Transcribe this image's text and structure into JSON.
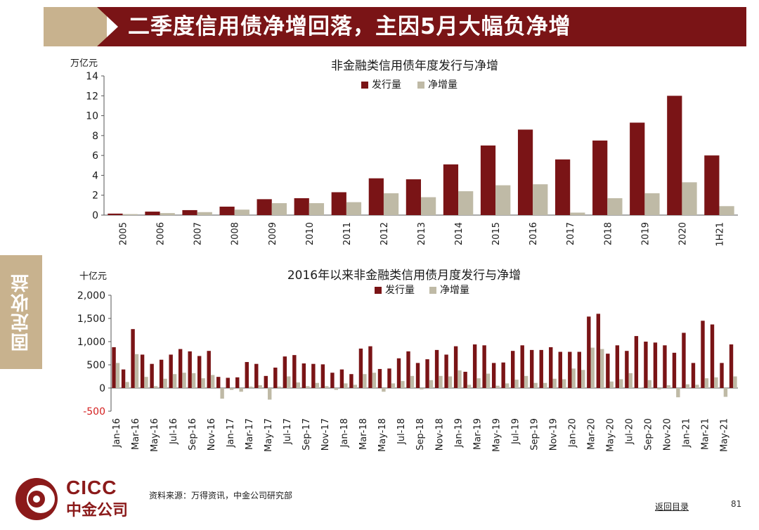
{
  "header": {
    "title": "二季度信用债净增回落，主因5月大幅负净增"
  },
  "side_tab": {
    "label": "固定收益"
  },
  "footer": {
    "source": "资料来源：万得资讯，中金公司研究部",
    "back_link": "返回目录",
    "page_number": "81"
  },
  "logo": {
    "en": "CICC",
    "cn": "中金公司"
  },
  "colors": {
    "issuance": "#7a1416",
    "net": "#bfbaa6",
    "negative_tick": "#d42020",
    "header": "#7a1416",
    "accent_tan": "#c8b28e"
  },
  "chart_data": [
    {
      "type": "bar",
      "title": "非金融类信用债年度发行与净增",
      "ylabel": "万亿元",
      "ylim": [
        0,
        14
      ],
      "yticks": [
        "0",
        "2",
        "4",
        "6",
        "8",
        "10",
        "12",
        "14"
      ],
      "legend_position": "top-center",
      "categories": [
        "2005",
        "2006",
        "2007",
        "2008",
        "2009",
        "2010",
        "2011",
        "2012",
        "2013",
        "2014",
        "2015",
        "2016",
        "2017",
        "2018",
        "2019",
        "2020",
        "1H21"
      ],
      "series": [
        {
          "name": "发行量",
          "values": [
            0.15,
            0.35,
            0.5,
            0.85,
            1.6,
            1.7,
            2.3,
            3.7,
            3.6,
            5.1,
            7.0,
            8.6,
            5.6,
            7.5,
            9.3,
            12.0,
            6.0
          ]
        },
        {
          "name": "净增量",
          "values": [
            0.1,
            0.2,
            0.3,
            0.55,
            1.2,
            1.2,
            1.3,
            2.2,
            1.8,
            2.4,
            3.0,
            3.1,
            0.25,
            1.7,
            2.2,
            3.3,
            0.9
          ]
        }
      ]
    },
    {
      "type": "bar",
      "title": "2016年以来非金融类信用债月度发行与净增",
      "ylabel": "十亿元",
      "ylim": [
        -500,
        2000
      ],
      "yticks": [
        "-500",
        "0",
        "500",
        "1,000",
        "1,500",
        "2,000"
      ],
      "legend_position": "top-center",
      "tick_labels": [
        "Jan-16",
        "Mar-16",
        "May-16",
        "Jul-16",
        "Sep-16",
        "Nov-16",
        "Jan-17",
        "Mar-17",
        "May-17",
        "Jul-17",
        "Sep-17",
        "Nov-17",
        "Jan-18",
        "Mar-18",
        "May-18",
        "Jul-18",
        "Sep-18",
        "Nov-18",
        "Jan-19",
        "Mar-19",
        "May-19",
        "Jul-19",
        "Sep-19",
        "Nov-19",
        "Jan-20",
        "Mar-20",
        "May-20",
        "Jul-20",
        "Sep-20",
        "Nov-20",
        "Jan-21",
        "Mar-21",
        "May-21"
      ],
      "categories": [
        "Jan-16",
        "Feb-16",
        "Mar-16",
        "Apr-16",
        "May-16",
        "Jun-16",
        "Jul-16",
        "Aug-16",
        "Sep-16",
        "Oct-16",
        "Nov-16",
        "Dec-16",
        "Jan-17",
        "Feb-17",
        "Mar-17",
        "Apr-17",
        "May-17",
        "Jun-17",
        "Jul-17",
        "Aug-17",
        "Sep-17",
        "Oct-17",
        "Nov-17",
        "Dec-17",
        "Jan-18",
        "Feb-18",
        "Mar-18",
        "Apr-18",
        "May-18",
        "Jun-18",
        "Jul-18",
        "Aug-18",
        "Sep-18",
        "Oct-18",
        "Nov-18",
        "Dec-18",
        "Jan-19",
        "Feb-19",
        "Mar-19",
        "Apr-19",
        "May-19",
        "Jun-19",
        "Jul-19",
        "Aug-19",
        "Sep-19",
        "Oct-19",
        "Nov-19",
        "Dec-19",
        "Jan-20",
        "Feb-20",
        "Mar-20",
        "Apr-20",
        "May-20",
        "Jun-20",
        "Jul-20",
        "Aug-20",
        "Sep-20",
        "Oct-20",
        "Nov-20",
        "Dec-20",
        "Jan-21",
        "Feb-21",
        "Mar-21",
        "Apr-21",
        "May-21",
        "Jun-21"
      ],
      "series": [
        {
          "name": "发行量",
          "values": [
            880,
            400,
            1270,
            720,
            520,
            610,
            720,
            840,
            790,
            690,
            800,
            240,
            220,
            230,
            560,
            520,
            260,
            440,
            680,
            710,
            530,
            520,
            510,
            330,
            400,
            300,
            850,
            900,
            410,
            420,
            640,
            790,
            540,
            620,
            820,
            720,
            900,
            350,
            940,
            920,
            540,
            550,
            800,
            920,
            820,
            820,
            880,
            780,
            780,
            780,
            1540,
            1600,
            740,
            920,
            800,
            1120,
            1000,
            980,
            920,
            760,
            1190,
            540,
            1450,
            1370,
            540,
            940
          ]
        },
        {
          "name": "净增量",
          "values": [
            540,
            130,
            730,
            240,
            40,
            200,
            300,
            330,
            320,
            210,
            280,
            -230,
            -40,
            -80,
            30,
            60,
            -250,
            30,
            250,
            120,
            40,
            110,
            40,
            -40,
            100,
            70,
            300,
            330,
            -80,
            100,
            150,
            260,
            -30,
            170,
            260,
            250,
            380,
            70,
            210,
            310,
            50,
            100,
            180,
            260,
            110,
            110,
            200,
            190,
            420,
            390,
            870,
            840,
            140,
            190,
            320,
            10,
            170,
            -30,
            60,
            -200,
            80,
            70,
            210,
            230,
            -190,
            250
          ]
        }
      ]
    }
  ]
}
